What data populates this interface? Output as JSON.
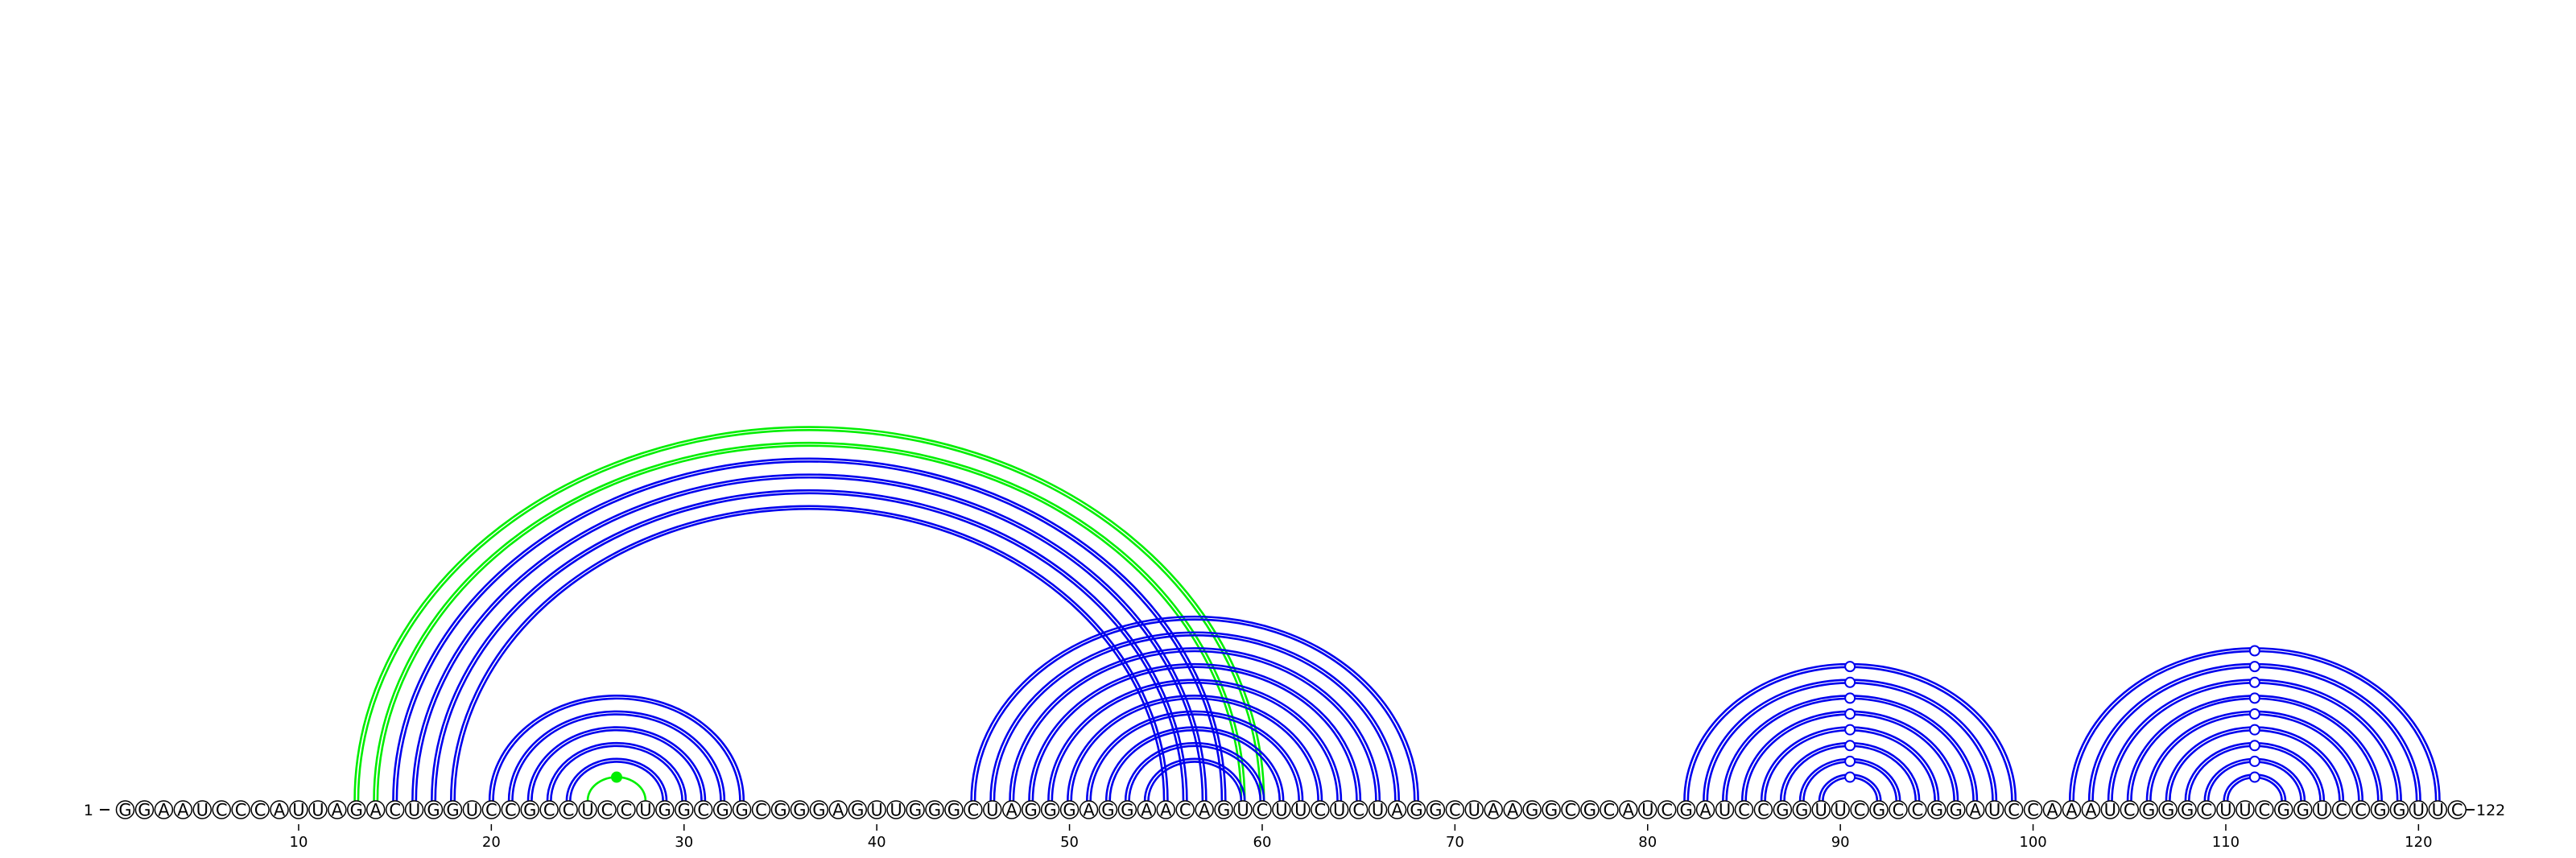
{
  "diagram": {
    "sequence": "GGAAUCCCAUUAGACUGGUCCGCCUCCUGGCGGCGGGAGUUGGGCUAGGGAGGAACAGUCUUCUCUAGGCUAAGGCGCAUCGAUCCGGUUCGCCGGAUCCAAAUCGGGCUUCGGUCCGGUUC",
    "start_label": "1",
    "end_label": "122",
    "tick_labels": [
      "10",
      "20",
      "30",
      "40",
      "50",
      "60",
      "70",
      "80",
      "90",
      "100",
      "110",
      "120"
    ],
    "tick_positions": [
      10,
      20,
      30,
      40,
      50,
      60,
      70,
      80,
      90,
      100,
      110,
      120
    ],
    "colors": {
      "predicted": "#0000ee",
      "reference": "#00ee00",
      "nucleotide_fill": "#ffffff",
      "nucleotide_stroke": "#000000"
    },
    "arc_sets": [
      {
        "name": "blue-long-helix",
        "color_key": "predicted",
        "pairs": [
          [
            15,
            58
          ],
          [
            16,
            57
          ],
          [
            17,
            56
          ],
          [
            18,
            55
          ]
        ],
        "doubled": true
      },
      {
        "name": "green-long-helix",
        "color_key": "reference",
        "pairs": [
          [
            13,
            60
          ],
          [
            14,
            59
          ]
        ],
        "doubled": true
      },
      {
        "name": "blue-hairpin-1",
        "color_key": "predicted",
        "pairs": [
          [
            20,
            33
          ],
          [
            21,
            32
          ],
          [
            22,
            31
          ],
          [
            23,
            30
          ],
          [
            24,
            29
          ]
        ],
        "doubled": true
      },
      {
        "name": "green-hairpin-1",
        "color_key": "reference",
        "pairs": [
          [
            25,
            28
          ]
        ],
        "doubled": false,
        "marker_filled": true
      },
      {
        "name": "blue-multi-helix",
        "color_key": "predicted",
        "pairs": [
          [
            45,
            68
          ],
          [
            46,
            67
          ],
          [
            47,
            66
          ],
          [
            48,
            65
          ],
          [
            49,
            64
          ],
          [
            50,
            63
          ],
          [
            51,
            62
          ],
          [
            52,
            61
          ],
          [
            53,
            60
          ],
          [
            54,
            59
          ]
        ],
        "doubled": true
      },
      {
        "name": "blue-hairpin-3",
        "color_key": "predicted",
        "pairs": [
          [
            82,
            99
          ],
          [
            83,
            98
          ],
          [
            84,
            97
          ],
          [
            85,
            96
          ],
          [
            86,
            95
          ],
          [
            87,
            94
          ],
          [
            88,
            93
          ],
          [
            89,
            92
          ]
        ],
        "doubled": true,
        "marker_open": true
      },
      {
        "name": "blue-hairpin-4",
        "color_key": "predicted",
        "pairs": [
          [
            102,
            121
          ],
          [
            103,
            120
          ],
          [
            104,
            119
          ],
          [
            105,
            118
          ],
          [
            106,
            117
          ],
          [
            107,
            116
          ],
          [
            108,
            115
          ],
          [
            109,
            114
          ],
          [
            110,
            113
          ]
        ],
        "doubled": true,
        "marker_open": true
      }
    ]
  }
}
